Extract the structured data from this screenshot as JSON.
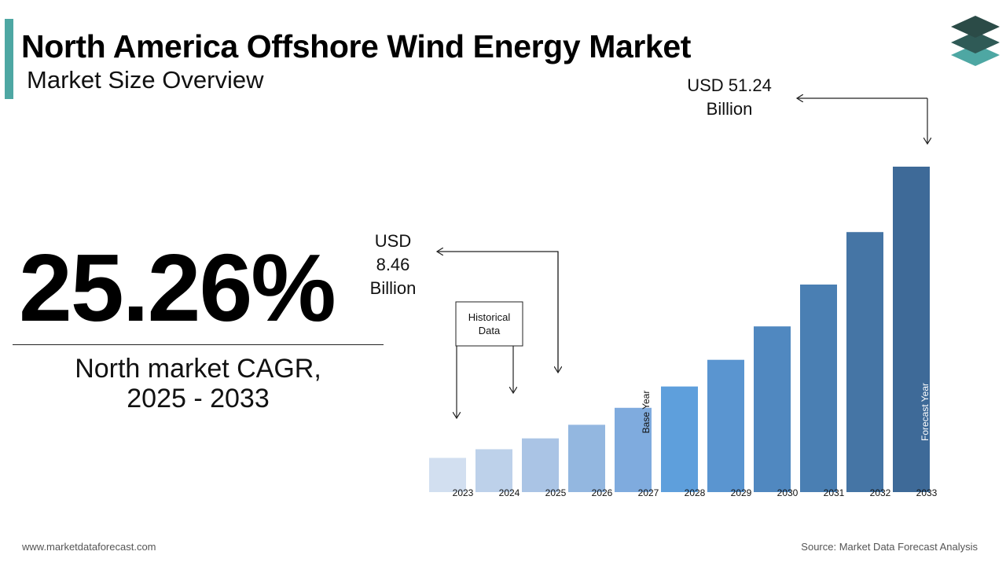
{
  "header": {
    "title": "North America Offshore Wind Energy Market",
    "subtitle": "Market Size Overview"
  },
  "highlight": {
    "cagr_value": "25.26%",
    "cagr_label_line1": "North market CAGR,",
    "cagr_label_line2": "2025 - 2033"
  },
  "chart_data": {
    "type": "bar",
    "categories": [
      "2023",
      "2024",
      "2025",
      "2026",
      "2027",
      "2028",
      "2029",
      "2030",
      "2031",
      "2032",
      "2033"
    ],
    "values": [
      5.39,
      6.75,
      8.46,
      10.6,
      13.27,
      16.63,
      20.83,
      26.09,
      32.68,
      40.94,
      51.24
    ],
    "ylim": [
      0,
      53
    ],
    "grid": false,
    "bar_colors": [
      "#d2dff0",
      "#bdd1ea",
      "#aac4e5",
      "#93b7e0",
      "#7fabde",
      "#5e9fdc",
      "#5a95d0",
      "#5088c0",
      "#4a7fb3",
      "#4575a5",
      "#3e6a98"
    ],
    "annotations": {
      "start_value_line1": "USD",
      "start_value_line2": "8.46",
      "start_value_line3": "Billion",
      "end_value_line1": "USD 51.24",
      "end_value_line2": "Billion",
      "historical_line1": "Historical",
      "historical_line2": "Data",
      "base_year": "Base Year",
      "forecast_year": "Forecast Year"
    }
  },
  "footer": {
    "website": "www.marketdataforecast.com",
    "source": "Source: Market Data Forecast Analysis"
  }
}
